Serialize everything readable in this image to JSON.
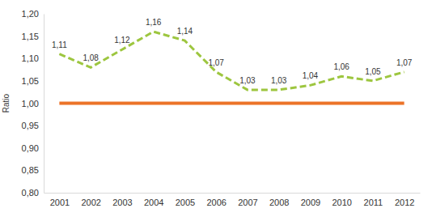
{
  "chart_data": {
    "type": "line",
    "y_label": "Ratio",
    "categories": [
      "2001",
      "2002",
      "2003",
      "2004",
      "2005",
      "2006",
      "2007",
      "2008",
      "2009",
      "2010",
      "2011",
      "2012"
    ],
    "series": [
      {
        "color": "#9dc63f",
        "line_style": "dashed",
        "data_labels": true,
        "values": [
          1.11,
          1.08,
          1.12,
          1.16,
          1.14,
          1.07,
          1.03,
          1.03,
          1.04,
          1.06,
          1.05,
          1.07
        ],
        "value_labels": [
          "1,11",
          "1,08",
          "1,12",
          "1,16",
          "1,14",
          "1,07",
          "1,03",
          "1,03",
          "1,04",
          "1,06",
          "1,05",
          "1,07"
        ]
      },
      {
        "color": "#ec7328",
        "line_style": "solid",
        "values": [
          1.0,
          1.0,
          1.0,
          1.0,
          1.0,
          1.0,
          1.0,
          1.0,
          1.0,
          1.0,
          1.0,
          1.0
        ]
      }
    ],
    "ylim": [
      0.8,
      1.2
    ],
    "yticks": [
      {
        "value": 0.8,
        "label": "0,80"
      },
      {
        "value": 0.85,
        "label": "0,85"
      },
      {
        "value": 0.9,
        "label": "0,90"
      },
      {
        "value": 0.95,
        "label": "0,95"
      },
      {
        "value": 1.0,
        "label": "1,00"
      },
      {
        "value": 1.05,
        "label": "1,05"
      },
      {
        "value": 1.1,
        "label": "1,10"
      },
      {
        "value": 1.15,
        "label": "1,15"
      },
      {
        "value": 1.2,
        "label": "1,20"
      }
    ],
    "grid": false
  }
}
